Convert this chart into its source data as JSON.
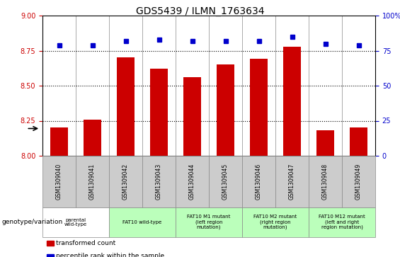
{
  "title": "GDS5439 / ILMN_1763634",
  "samples": [
    "GSM1309040",
    "GSM1309041",
    "GSM1309042",
    "GSM1309043",
    "GSM1309044",
    "GSM1309045",
    "GSM1309046",
    "GSM1309047",
    "GSM1309048",
    "GSM1309049"
  ],
  "bar_values": [
    8.2,
    8.26,
    8.7,
    8.62,
    8.56,
    8.65,
    8.69,
    8.78,
    8.18,
    8.2
  ],
  "percentile_values": [
    79,
    79,
    82,
    83,
    82,
    82,
    82,
    85,
    80,
    79
  ],
  "bar_color": "#cc0000",
  "dot_color": "#0000cc",
  "ylim_left": [
    8.0,
    9.0
  ],
  "ylim_right": [
    0,
    100
  ],
  "yticks_left": [
    8.0,
    8.25,
    8.5,
    8.75,
    9.0
  ],
  "yticks_right": [
    0,
    25,
    50,
    75,
    100
  ],
  "dotted_lines": [
    8.25,
    8.5,
    8.75
  ],
  "genotype_groups": [
    {
      "label": "parental\nwild-type",
      "start": 0,
      "end": 2,
      "color": "#ffffff"
    },
    {
      "label": "FAT10 wild-type",
      "start": 2,
      "end": 4,
      "color": "#bbffbb"
    },
    {
      "label": "FAT10 M1 mutant\n(left region\nmutation)",
      "start": 4,
      "end": 6,
      "color": "#bbffbb"
    },
    {
      "label": "FAT10 M2 mutant\n(right region\nmutation)",
      "start": 6,
      "end": 8,
      "color": "#bbffbb"
    },
    {
      "label": "FAT10 M12 mutant\n(left and right\nregion mutation)",
      "start": 8,
      "end": 10,
      "color": "#bbffbb"
    }
  ],
  "legend_red_label": "transformed count",
  "legend_blue_label": "percentile rank within the sample",
  "genotype_label": "genotype/variation",
  "sample_cell_color": "#cccccc",
  "tick_label_color_left": "#cc0000",
  "tick_label_color_right": "#0000cc",
  "title_fontsize": 10,
  "bar_width": 0.55
}
